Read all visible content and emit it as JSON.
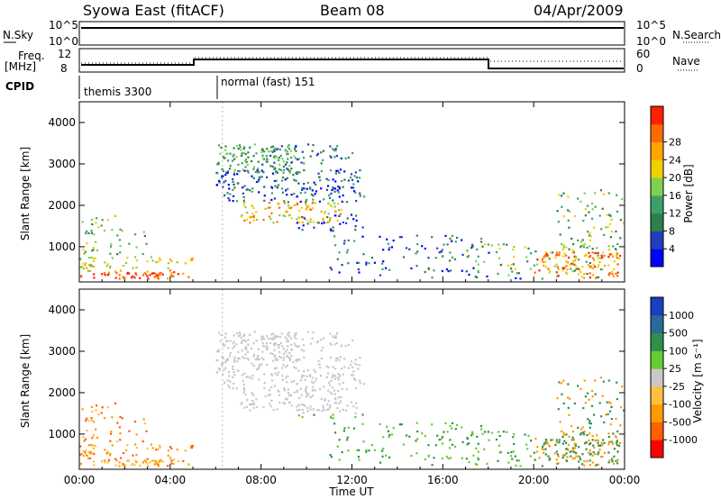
{
  "header": {
    "station": "Syowa East (fitACF)",
    "beam": "Beam 08",
    "date": "04/Apr/2009"
  },
  "strips": {
    "nsky_label": "N.Sky",
    "nsky_ticks": [
      "10^5",
      "10^0"
    ],
    "nsearch_label": "N.Search",
    "nsearch_ticks": [
      "10^5",
      "10^0"
    ],
    "freq_label_1": "Freq.",
    "freq_label_2": "[MHz]",
    "freq_ticks": [
      "12",
      "8"
    ],
    "nave_label": "Nave",
    "nave_ticks": [
      "60",
      "0"
    ],
    "cpid_label": "CPID",
    "cpid_modes": [
      "themis 3300",
      "normal (fast) 151"
    ]
  },
  "colors": {
    "power_scale": [
      "#0000ff",
      "#1f3fbf",
      "#2e7f4a",
      "#3f9f6a",
      "#7fd04f",
      "#f0d000",
      "#ffa500",
      "#ff6a00",
      "#ff2000"
    ],
    "velocity_scale": [
      "#ff0000",
      "#ff6000",
      "#ff9a00",
      "#ffc040",
      "#c8c8c8",
      "#66cc33",
      "#2f8f4f",
      "#2a6a9a",
      "#1a3fbf"
    ]
  },
  "chart_data": [
    {
      "type": "heatmap",
      "panel": "power",
      "ylabel": "Slant Range [km]",
      "xlabel": "",
      "yticks": [
        "1000",
        "2000",
        "3000",
        "4000"
      ],
      "xticks": [
        "00:00",
        "04:00",
        "08:00",
        "12:00",
        "16:00",
        "20:00",
        "00:00"
      ],
      "ylim": [
        150,
        4500
      ],
      "xlim": [
        0,
        24
      ],
      "colorbar_label": "Power [dB]",
      "colorbar_ticks": [
        "4",
        "8",
        "12",
        "16",
        "20",
        "24",
        "28"
      ]
    },
    {
      "type": "heatmap",
      "panel": "velocity",
      "ylabel": "Slant Range [km]",
      "xlabel": "Time UT",
      "yticks": [
        "1000",
        "2000",
        "3000",
        "4000"
      ],
      "xticks": [
        "00:00",
        "04:00",
        "08:00",
        "12:00",
        "16:00",
        "20:00",
        "00:00"
      ],
      "ylim": [
        150,
        4500
      ],
      "xlim": [
        0,
        24
      ],
      "colorbar_label": "Velocity [m s⁻¹]",
      "colorbar_ticks": [
        "-1000",
        "-500",
        "-100",
        "-25",
        "25",
        "100",
        "500",
        "1000"
      ]
    }
  ]
}
